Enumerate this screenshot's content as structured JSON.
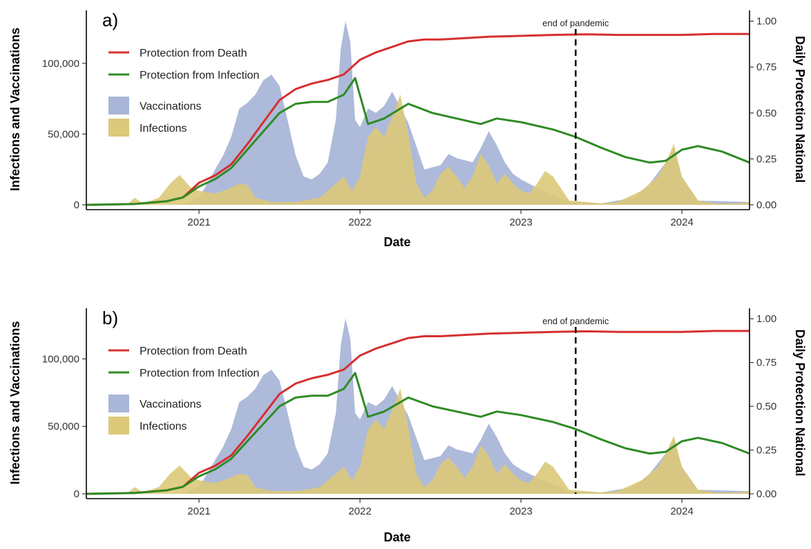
{
  "chart_data": [
    {
      "type": "area",
      "panel_label": "a)",
      "xlabel": "Date",
      "ylabel": "Infections and Vaccinations",
      "y2label": "Daily Protection National",
      "xlim": [
        2020.3,
        2024.42
      ],
      "ylim": [
        0,
        135000
      ],
      "y2lim": [
        0,
        1.04
      ],
      "xticks": [
        2021,
        2022,
        2023,
        2024
      ],
      "xtick_labels": [
        "2021",
        "2022",
        "2023",
        "2024"
      ],
      "yticks": [
        0,
        50000,
        100000
      ],
      "ytick_labels": [
        "0",
        "50,000",
        "100,000"
      ],
      "y2ticks": [
        0,
        0.25,
        0.5,
        0.75,
        1.0
      ],
      "y2tick_labels": [
        "0.00",
        "0.25",
        "0.50",
        "0.75",
        "1.00"
      ],
      "grid": false,
      "legend_position": "top-left",
      "annotation": {
        "text": "end of pandemic",
        "x": 2023.34,
        "style": "dashed vertical line"
      },
      "series": [
        {
          "name": "Protection from Death",
          "axis": "right",
          "kind": "line",
          "color": "#d62f2f",
          "x": [
            2020.3,
            2020.6,
            2020.8,
            2020.9,
            2021.0,
            2021.1,
            2021.2,
            2021.3,
            2021.4,
            2021.5,
            2021.6,
            2021.7,
            2021.8,
            2021.9,
            2022.0,
            2022.1,
            2022.2,
            2022.3,
            2022.4,
            2022.5,
            2022.6,
            2022.8,
            2023.0,
            2023.2,
            2023.4,
            2023.6,
            2023.8,
            2024.0,
            2024.2,
            2024.42
          ],
          "values": [
            0,
            0.005,
            0.02,
            0.04,
            0.12,
            0.16,
            0.22,
            0.33,
            0.45,
            0.57,
            0.63,
            0.66,
            0.68,
            0.71,
            0.79,
            0.83,
            0.86,
            0.89,
            0.9,
            0.9,
            0.905,
            0.915,
            0.92,
            0.925,
            0.928,
            0.925,
            0.925,
            0.925,
            0.93,
            0.93
          ]
        },
        {
          "name": "Protection from Infection",
          "axis": "right",
          "kind": "line",
          "color": "#2e8b24",
          "x": [
            2020.3,
            2020.6,
            2020.8,
            2020.9,
            2021.0,
            2021.1,
            2021.2,
            2021.3,
            2021.4,
            2021.5,
            2021.6,
            2021.7,
            2021.8,
            2021.9,
            2021.97,
            2022.05,
            2022.15,
            2022.3,
            2022.45,
            2022.6,
            2022.75,
            2022.85,
            2023.0,
            2023.2,
            2023.34,
            2023.5,
            2023.65,
            2023.8,
            2023.9,
            2024.0,
            2024.1,
            2024.25,
            2024.42
          ],
          "values": [
            0,
            0.005,
            0.02,
            0.04,
            0.1,
            0.14,
            0.2,
            0.3,
            0.4,
            0.5,
            0.55,
            0.56,
            0.56,
            0.6,
            0.69,
            0.44,
            0.47,
            0.55,
            0.5,
            0.47,
            0.44,
            0.47,
            0.45,
            0.41,
            0.37,
            0.31,
            0.26,
            0.23,
            0.24,
            0.3,
            0.32,
            0.29,
            0.23
          ]
        },
        {
          "name": "Vaccinations",
          "axis": "left",
          "kind": "area",
          "color": "#aab6d8",
          "x": [
            2020.3,
            2020.9,
            2021.0,
            2021.05,
            2021.1,
            2021.15,
            2021.2,
            2021.25,
            2021.3,
            2021.35,
            2021.4,
            2021.45,
            2021.5,
            2021.55,
            2021.6,
            2021.65,
            2021.7,
            2021.75,
            2021.8,
            2021.85,
            2021.88,
            2021.91,
            2021.94,
            2021.97,
            2022.0,
            2022.05,
            2022.1,
            2022.15,
            2022.2,
            2022.3,
            2022.4,
            2022.5,
            2022.55,
            2022.6,
            2022.7,
            2022.75,
            2022.8,
            2022.85,
            2022.9,
            2022.95,
            2023.0,
            2023.1,
            2023.3,
            2023.5,
            2023.7,
            2023.8,
            2023.9,
            2023.95,
            2024.0,
            2024.1,
            2024.42
          ],
          "values": [
            0,
            0,
            5000,
            15000,
            25000,
            35000,
            48000,
            68000,
            72000,
            78000,
            88000,
            92000,
            84000,
            60000,
            35000,
            20000,
            18000,
            22000,
            30000,
            60000,
            110000,
            130000,
            115000,
            60000,
            55000,
            68000,
            65000,
            70000,
            80000,
            58000,
            25000,
            28000,
            36000,
            33000,
            30000,
            40000,
            52000,
            42000,
            30000,
            22000,
            18000,
            12000,
            2000,
            1000,
            5000,
            15000,
            30000,
            40000,
            20000,
            3000,
            2000
          ]
        },
        {
          "name": "Infections",
          "axis": "left",
          "kind": "area",
          "color": "#dcc979",
          "x": [
            2020.3,
            2020.55,
            2020.6,
            2020.65,
            2020.75,
            2020.82,
            2020.88,
            2020.95,
            2021.0,
            2021.05,
            2021.1,
            2021.15,
            2021.2,
            2021.25,
            2021.3,
            2021.35,
            2021.45,
            2021.6,
            2021.75,
            2021.85,
            2021.9,
            2021.95,
            2022.0,
            2022.05,
            2022.1,
            2022.15,
            2022.2,
            2022.25,
            2022.3,
            2022.35,
            2022.4,
            2022.45,
            2022.5,
            2022.55,
            2022.6,
            2022.65,
            2022.7,
            2022.75,
            2022.8,
            2022.85,
            2022.9,
            2022.95,
            2023.0,
            2023.05,
            2023.1,
            2023.15,
            2023.2,
            2023.3,
            2023.5,
            2023.6,
            2023.75,
            2023.85,
            2023.9,
            2023.95,
            2024.0,
            2024.1,
            2024.2,
            2024.35,
            2024.42
          ],
          "values": [
            0,
            0,
            5000,
            1000,
            5000,
            15000,
            21000,
            12000,
            10000,
            9000,
            8000,
            10000,
            12000,
            15000,
            14000,
            5000,
            2000,
            2000,
            5000,
            15000,
            20000,
            10000,
            20000,
            48000,
            55000,
            48000,
            62000,
            78000,
            50000,
            15000,
            5000,
            10000,
            22000,
            27000,
            20000,
            12000,
            20000,
            36000,
            28000,
            15000,
            22000,
            15000,
            10000,
            8000,
            15000,
            24000,
            20000,
            3000,
            1000,
            2000,
            10000,
            20000,
            30000,
            43000,
            20000,
            3000,
            1000,
            1000,
            2000
          ]
        }
      ]
    },
    {
      "type": "area",
      "panel_label": "b)",
      "xlabel": "Date",
      "ylabel": "Infections and Vaccinations",
      "y2label": "Daily Protection National",
      "xlim": [
        2020.3,
        2024.42
      ],
      "ylim": [
        0,
        135000
      ],
      "y2lim": [
        0,
        1.04
      ],
      "xticks": [
        2021,
        2022,
        2023,
        2024
      ],
      "xtick_labels": [
        "2021",
        "2022",
        "2023",
        "2024"
      ],
      "yticks": [
        0,
        50000,
        100000
      ],
      "ytick_labels": [
        "0",
        "50,000",
        "100,000"
      ],
      "y2ticks": [
        0,
        0.25,
        0.5,
        0.75,
        1.0
      ],
      "y2tick_labels": [
        "0.00",
        "0.25",
        "0.50",
        "0.75",
        "1.00"
      ],
      "grid": false,
      "legend_position": "top-left",
      "annotation": {
        "text": "end of pandemic",
        "x": 2023.34,
        "style": "dashed vertical line"
      },
      "series": [
        {
          "name": "Protection from Death",
          "axis": "right",
          "kind": "line",
          "color": "#d62f2f",
          "x": [
            2020.3,
            2020.6,
            2020.8,
            2020.9,
            2021.0,
            2021.1,
            2021.2,
            2021.3,
            2021.4,
            2021.5,
            2021.6,
            2021.7,
            2021.8,
            2021.9,
            2022.0,
            2022.1,
            2022.2,
            2022.3,
            2022.4,
            2022.5,
            2022.6,
            2022.8,
            2023.0,
            2023.2,
            2023.4,
            2023.6,
            2023.8,
            2024.0,
            2024.2,
            2024.42
          ],
          "values": [
            0,
            0.005,
            0.02,
            0.04,
            0.12,
            0.16,
            0.22,
            0.33,
            0.45,
            0.57,
            0.63,
            0.66,
            0.68,
            0.71,
            0.79,
            0.83,
            0.86,
            0.89,
            0.9,
            0.9,
            0.905,
            0.915,
            0.92,
            0.925,
            0.928,
            0.925,
            0.925,
            0.925,
            0.93,
            0.93
          ]
        },
        {
          "name": "Protection from Infection",
          "axis": "right",
          "kind": "line",
          "color": "#2e8b24",
          "x": [
            2020.3,
            2020.6,
            2020.8,
            2020.9,
            2021.0,
            2021.1,
            2021.2,
            2021.3,
            2021.4,
            2021.5,
            2021.6,
            2021.7,
            2021.8,
            2021.9,
            2021.97,
            2022.05,
            2022.15,
            2022.3,
            2022.45,
            2022.6,
            2022.75,
            2022.85,
            2023.0,
            2023.2,
            2023.34,
            2023.5,
            2023.65,
            2023.8,
            2023.9,
            2024.0,
            2024.1,
            2024.25,
            2024.42
          ],
          "values": [
            0,
            0.005,
            0.02,
            0.04,
            0.1,
            0.14,
            0.2,
            0.3,
            0.4,
            0.5,
            0.55,
            0.56,
            0.56,
            0.6,
            0.69,
            0.44,
            0.47,
            0.55,
            0.5,
            0.47,
            0.44,
            0.47,
            0.45,
            0.41,
            0.37,
            0.31,
            0.26,
            0.23,
            0.24,
            0.3,
            0.32,
            0.29,
            0.23
          ]
        },
        {
          "name": "Vaccinations",
          "axis": "left",
          "kind": "area",
          "color": "#aab6d8",
          "x": [
            2020.3,
            2020.9,
            2021.0,
            2021.05,
            2021.1,
            2021.15,
            2021.2,
            2021.25,
            2021.3,
            2021.35,
            2021.4,
            2021.45,
            2021.5,
            2021.55,
            2021.6,
            2021.65,
            2021.7,
            2021.75,
            2021.8,
            2021.85,
            2021.88,
            2021.91,
            2021.94,
            2021.97,
            2022.0,
            2022.05,
            2022.1,
            2022.15,
            2022.2,
            2022.3,
            2022.4,
            2022.5,
            2022.55,
            2022.6,
            2022.7,
            2022.75,
            2022.8,
            2022.85,
            2022.9,
            2022.95,
            2023.0,
            2023.1,
            2023.3,
            2023.5,
            2023.7,
            2023.8,
            2023.9,
            2023.95,
            2024.0,
            2024.1,
            2024.42
          ],
          "values": [
            0,
            0,
            5000,
            15000,
            25000,
            35000,
            48000,
            68000,
            72000,
            78000,
            88000,
            92000,
            84000,
            60000,
            35000,
            20000,
            18000,
            22000,
            30000,
            60000,
            110000,
            130000,
            115000,
            60000,
            55000,
            68000,
            65000,
            70000,
            80000,
            58000,
            25000,
            28000,
            36000,
            33000,
            30000,
            40000,
            52000,
            42000,
            30000,
            22000,
            18000,
            12000,
            2000,
            1000,
            5000,
            15000,
            30000,
            40000,
            20000,
            3000,
            2000
          ]
        },
        {
          "name": "Infections",
          "axis": "left",
          "kind": "area",
          "color": "#dcc979",
          "x": [
            2020.3,
            2020.55,
            2020.6,
            2020.65,
            2020.75,
            2020.82,
            2020.88,
            2020.95,
            2021.0,
            2021.05,
            2021.1,
            2021.15,
            2021.2,
            2021.25,
            2021.3,
            2021.35,
            2021.45,
            2021.6,
            2021.75,
            2021.85,
            2021.9,
            2021.95,
            2022.0,
            2022.05,
            2022.1,
            2022.15,
            2022.2,
            2022.25,
            2022.3,
            2022.35,
            2022.4,
            2022.45,
            2022.5,
            2022.55,
            2022.6,
            2022.65,
            2022.7,
            2022.75,
            2022.8,
            2022.85,
            2022.9,
            2022.95,
            2023.0,
            2023.05,
            2023.1,
            2023.15,
            2023.2,
            2023.3,
            2023.5,
            2023.6,
            2023.75,
            2023.85,
            2023.9,
            2023.95,
            2024.0,
            2024.1,
            2024.2,
            2024.35,
            2024.42
          ],
          "values": [
            0,
            0,
            5000,
            1000,
            5000,
            15000,
            21000,
            12000,
            10000,
            9000,
            8000,
            10000,
            12000,
            15000,
            14000,
            5000,
            2000,
            2000,
            5000,
            15000,
            20000,
            10000,
            20000,
            48000,
            55000,
            48000,
            62000,
            78000,
            50000,
            15000,
            5000,
            10000,
            22000,
            27000,
            20000,
            12000,
            20000,
            36000,
            28000,
            15000,
            22000,
            15000,
            10000,
            8000,
            15000,
            24000,
            20000,
            3000,
            1000,
            2000,
            10000,
            20000,
            30000,
            43000,
            20000,
            3000,
            1000,
            1000,
            2000
          ]
        }
      ]
    }
  ]
}
